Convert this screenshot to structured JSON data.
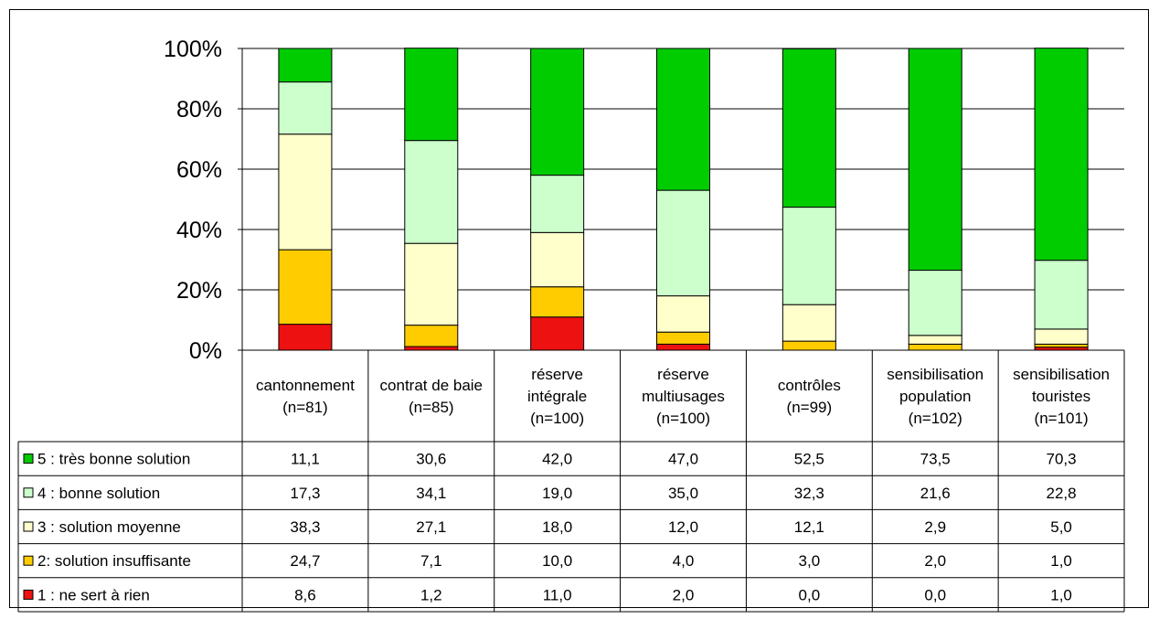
{
  "chart_data": {
    "type": "bar",
    "stacked": true,
    "percent": true,
    "categories": [
      [
        "cantonnement",
        "(n=81)"
      ],
      [
        "contrat de baie",
        "(n=85)"
      ],
      [
        "réserve",
        "intégrale",
        "(n=100)"
      ],
      [
        "réserve",
        "multiusages",
        "(n=100)"
      ],
      [
        "contrôles",
        "(n=99)"
      ],
      [
        "sensibilisation",
        "population",
        "(n=102)"
      ],
      [
        "sensibilisation",
        "touristes",
        "(n=101)"
      ]
    ],
    "y_ticks": [
      "0%",
      "20%",
      "40%",
      "60%",
      "80%",
      "100%"
    ],
    "ylim": [
      0,
      100
    ],
    "grid": true,
    "legend_placement": "data-table",
    "series": [
      {
        "name": "5 : très bonne solution",
        "color": "#00cc00",
        "values": [
          11.1,
          30.6,
          42.0,
          47.0,
          52.5,
          73.5,
          70.3
        ],
        "labels": [
          "11,1",
          "30,6",
          "42,0",
          "47,0",
          "52,5",
          "73,5",
          "70,3"
        ]
      },
      {
        "name": "4 : bonne solution",
        "color": "#ccffcc",
        "values": [
          17.3,
          34.1,
          19.0,
          35.0,
          32.3,
          21.6,
          22.8
        ],
        "labels": [
          "17,3",
          "34,1",
          "19,0",
          "35,0",
          "32,3",
          "21,6",
          "22,8"
        ]
      },
      {
        "name": "3 : solution moyenne",
        "color": "#ffffcc",
        "values": [
          38.3,
          27.1,
          18.0,
          12.0,
          12.1,
          2.9,
          5.0
        ],
        "labels": [
          "38,3",
          "27,1",
          "18,0",
          "12,0",
          "12,1",
          "2,9",
          "5,0"
        ]
      },
      {
        "name": "2: solution insuffisante",
        "color": "#ffcc00",
        "values": [
          24.7,
          7.1,
          10.0,
          4.0,
          3.0,
          2.0,
          1.0
        ],
        "labels": [
          "24,7",
          "7,1",
          "10,0",
          "4,0",
          "3,0",
          "2,0",
          "1,0"
        ]
      },
      {
        "name": "1 : ne sert à rien",
        "color": "#ee1111",
        "values": [
          8.6,
          1.2,
          11.0,
          2.0,
          0.0,
          0.0,
          1.0
        ],
        "labels": [
          "8,6",
          "1,2",
          "11,0",
          "2,0",
          "0,0",
          "0,0",
          "1,0"
        ]
      }
    ]
  }
}
